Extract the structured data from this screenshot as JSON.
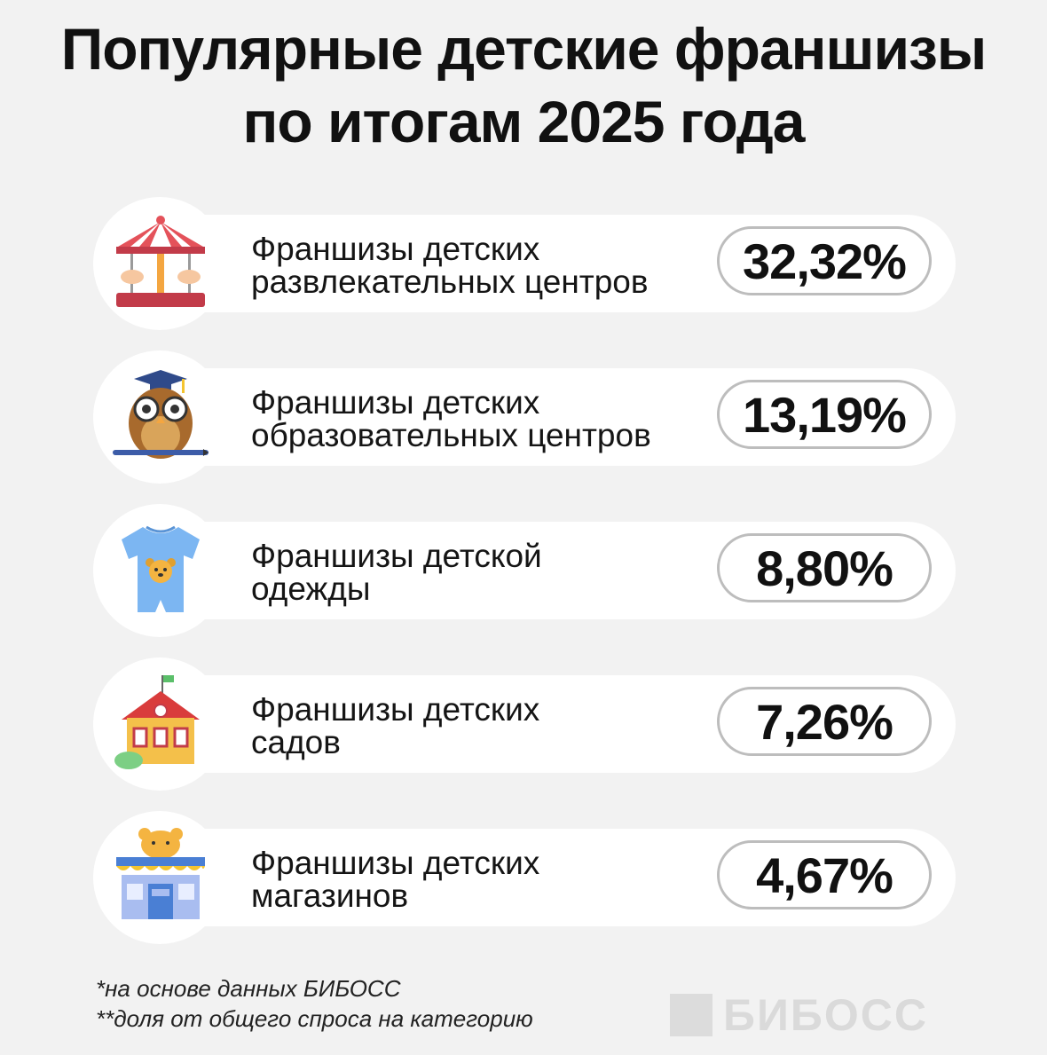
{
  "title": {
    "line1": "Популярные детские франшизы",
    "line2": "по итогам 2025 года"
  },
  "chart_data": {
    "type": "bar",
    "categories": [
      "Франшизы детских развлекательных центров",
      "Франшизы детских образовательных центров",
      "Франшизы детской одежды",
      "Франшизы детских садов",
      "Франшизы детских магазинов"
    ],
    "values": [
      32.32,
      13.19,
      8.8,
      7.26,
      4.67
    ],
    "unit": "%",
    "title": "Популярные детские франшизы по итогам 2025 года"
  },
  "items": [
    {
      "line1": "Франшизы детских",
      "line2": "развлекательных центров",
      "value": "32,32%",
      "icon": "carousel-icon"
    },
    {
      "line1": "Франшизы детских",
      "line2": "образовательных центров",
      "value": "13,19%",
      "icon": "owl-graduate-icon"
    },
    {
      "line1": "Франшизы детской",
      "line2": "одежды",
      "value": "8,80%",
      "icon": "baby-romper-icon"
    },
    {
      "line1": "Франшизы детских",
      "line2": "садов",
      "value": "7,26%",
      "icon": "kindergarten-icon"
    },
    {
      "line1": "Франшизы детских",
      "line2": "магазинов",
      "value": "4,67%",
      "icon": "toy-store-icon"
    }
  ],
  "notes": {
    "source": "*на основе данных БИБОСС",
    "share": "**доля от общего спроса на категорию"
  },
  "watermark": "БИБОСС",
  "colors": {
    "background": "#f2f2f2",
    "card": "#ffffff",
    "pill_border": "#bdbdbd"
  }
}
